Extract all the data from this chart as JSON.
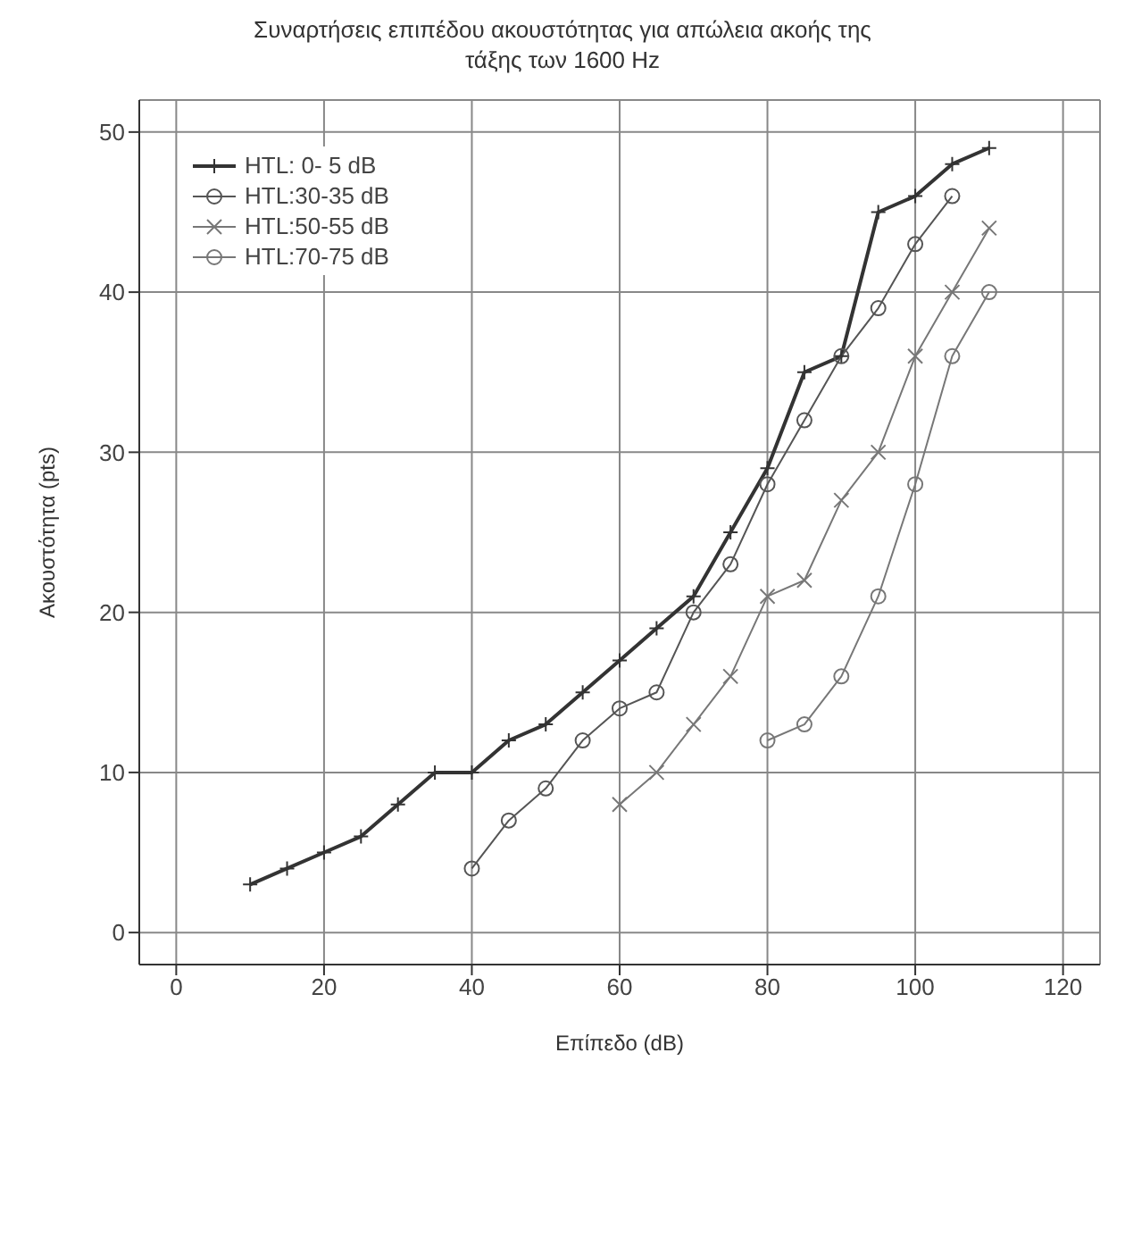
{
  "chart_data": {
    "type": "line",
    "title": "Συναρτήσεις επιπέδου ακουστότητας για απώλεια ακοής της τάξης των 1600 Hz",
    "xlabel": "Επίπεδο (dB)",
    "ylabel": "Ακουστότητα (pts)",
    "xlim": [
      -5,
      125
    ],
    "ylim": [
      -2,
      52
    ],
    "xticks": [
      0,
      20,
      40,
      60,
      80,
      100,
      120
    ],
    "yticks": [
      0,
      10,
      20,
      30,
      40,
      50
    ],
    "grid": true,
    "legend": "top left",
    "line_style": "solid",
    "series": [
      {
        "name": "HTL: 0- 5 dB",
        "color": "#333333",
        "marker": "cross",
        "x": [
          10,
          15,
          20,
          25,
          30,
          35,
          40,
          45,
          50,
          55,
          60,
          65,
          70,
          75,
          80,
          85,
          90,
          95,
          100,
          105,
          110
        ],
        "values": [
          3,
          4,
          5,
          6,
          8,
          10,
          10,
          12,
          13,
          15,
          17,
          19,
          21,
          25,
          29,
          35,
          36,
          45,
          46,
          48,
          49
        ]
      },
      {
        "name": "HTL:30-35 dB",
        "color": "#555555",
        "marker": "circle",
        "x": [
          40,
          45,
          50,
          55,
          60,
          65,
          70,
          75,
          80,
          85,
          90,
          95,
          100,
          105
        ],
        "values": [
          4,
          7,
          9,
          12,
          14,
          15,
          20,
          23,
          28,
          32,
          36,
          39,
          43,
          46
        ]
      },
      {
        "name": "HTL:50-55 dB",
        "color": "#777777",
        "marker": "x",
        "x": [
          60,
          65,
          70,
          75,
          80,
          85,
          90,
          95,
          100,
          105,
          110
        ],
        "values": [
          8,
          10,
          13,
          16,
          21,
          22,
          27,
          30,
          36,
          40,
          44
        ]
      },
      {
        "name": "HTL:70-75 dB",
        "color": "#777777",
        "marker": "circle",
        "x": [
          80,
          85,
          90,
          95,
          100,
          105,
          110
        ],
        "values": [
          12,
          13,
          16,
          21,
          28,
          36,
          40
        ]
      }
    ]
  }
}
